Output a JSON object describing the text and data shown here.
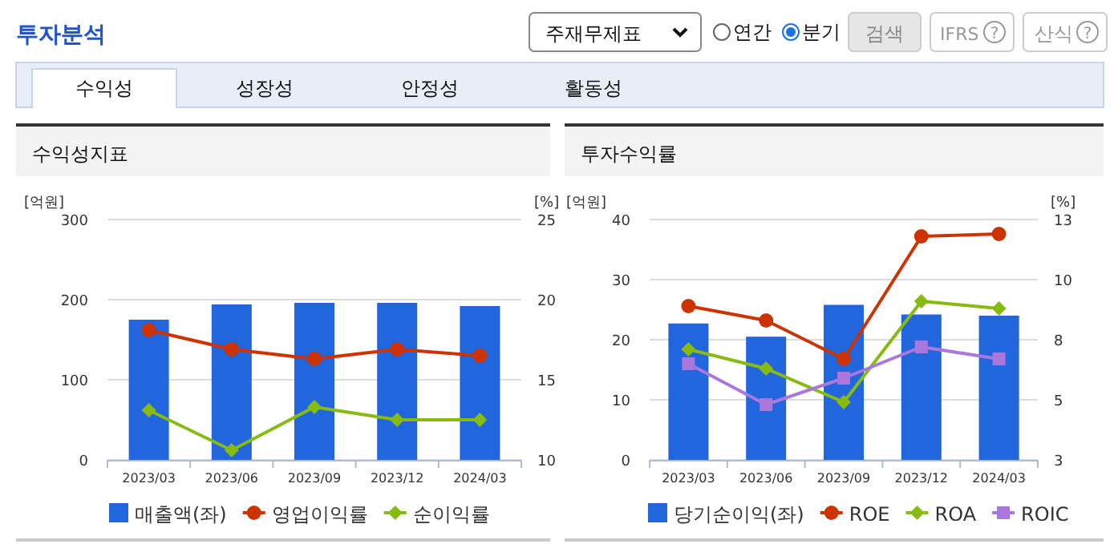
{
  "chart_data": [
    {
      "type": "other",
      "title": "투자분석",
      "annotations": [
        "주재무제표",
        "연간",
        "분기",
        "검색",
        "IFRS",
        "?",
        "산식",
        "?",
        "수익성",
        "성장성",
        "안정성",
        "활동성"
      ]
    },
    {
      "type": "bar",
      "title": "수익성지표",
      "ylabel": "[억원]",
      "y2label": "[%]",
      "categories": [
        "2023/03",
        "2023/06",
        "2023/09",
        "2023/12",
        "2024/03"
      ],
      "ylim": [
        0,
        300
      ],
      "yticks": [
        0,
        100,
        200,
        300
      ],
      "y2lim": [
        10,
        25
      ],
      "y2ticks": [
        10,
        15,
        20,
        25
      ],
      "grid": "y",
      "legend": "bottom",
      "series": [
        {
          "name": "매출액(좌)",
          "type": "bar",
          "color": "#2266dd",
          "values": [
            175,
            194,
            196,
            196,
            192
          ]
        },
        {
          "name": "영업이익률",
          "type": "line",
          "axis": "y2",
          "marker": "circle",
          "color": "#cc3300",
          "values": [
            18.1,
            16.9,
            16.3,
            16.9,
            16.5
          ]
        },
        {
          "name": "순이익률",
          "type": "line",
          "axis": "y2",
          "marker": "diamond",
          "color": "#88bb11",
          "values": [
            13.1,
            10.6,
            13.3,
            12.5,
            12.5
          ]
        }
      ]
    },
    {
      "type": "bar",
      "title": "투자수익률",
      "ylabel": "[억원]",
      "y2label": "[%]",
      "categories": [
        "2023/03",
        "2023/06",
        "2023/09",
        "2023/12",
        "2024/03"
      ],
      "ylim": [
        0,
        40
      ],
      "yticks": [
        0,
        10,
        20,
        30,
        40
      ],
      "y2lim": [
        3,
        13
      ],
      "y2ticks": [
        3,
        {
          "value": 5.5,
          "label": "5"
        },
        8,
        {
          "value": 10.5,
          "label": "10"
        },
        13
      ],
      "grid": "y",
      "legend": "bottom",
      "series": [
        {
          "name": "당기순이익(좌)",
          "type": "bar",
          "color": "#2266dd",
          "values": [
            22.7,
            20.5,
            25.8,
            24.2,
            24.0
          ]
        },
        {
          "name": "ROE",
          "type": "line",
          "axis": "y2",
          "marker": "circle",
          "color": "#cc3300",
          "values": [
            9.4,
            8.8,
            7.2,
            12.3,
            12.4
          ]
        },
        {
          "name": "ROA",
          "type": "line",
          "axis": "y2",
          "marker": "diamond",
          "color": "#88bb11",
          "values": [
            7.6,
            6.8,
            5.4,
            9.6,
            9.3
          ]
        },
        {
          "name": "ROIC",
          "type": "line",
          "axis": "y2",
          "marker": "square",
          "color": "#aa77dd",
          "values": [
            7.0,
            5.3,
            6.4,
            7.7,
            7.2
          ]
        }
      ]
    }
  ]
}
